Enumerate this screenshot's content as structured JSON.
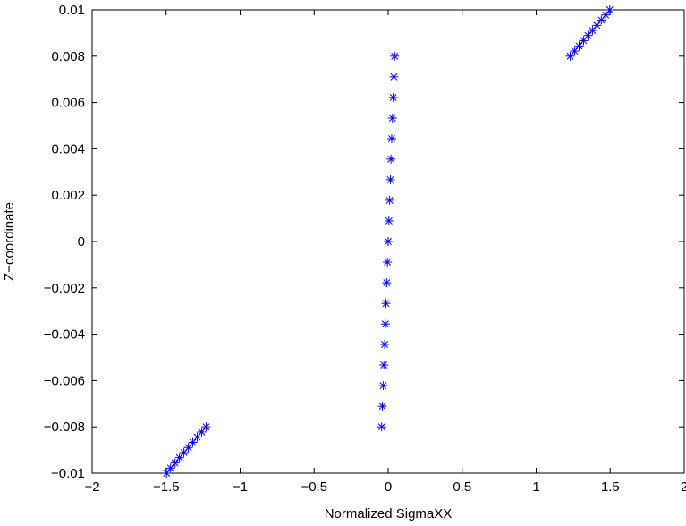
{
  "chart_data": {
    "type": "scatter",
    "title": "",
    "xlabel": "Normalized SigmaXX",
    "ylabel": "Z−coordinate",
    "xlim": [
      -2,
      2
    ],
    "ylim": [
      -0.01,
      0.01
    ],
    "xticks": [
      -2,
      -1.5,
      -1,
      -0.5,
      0,
      0.5,
      1,
      1.5,
      2
    ],
    "xtick_labels": [
      "−2",
      "−1.5",
      "−1",
      "−0.5",
      "0",
      "0.5",
      "1",
      "1.5",
      "2"
    ],
    "yticks": [
      -0.01,
      -0.008,
      -0.006,
      -0.004,
      -0.002,
      0,
      0.002,
      0.004,
      0.006,
      0.008,
      0.01
    ],
    "ytick_labels": [
      "−0.01",
      "−0.008",
      "−0.006",
      "−0.004",
      "−0.002",
      "0",
      "0.002",
      "0.004",
      "0.006",
      "0.008",
      "0.01"
    ],
    "grid": false,
    "legend": "none",
    "marker": "asterisk",
    "marker_color": "#0000ff",
    "series": [
      {
        "points": [
          [
            -1.497,
            -0.01
          ],
          [
            -1.47,
            -0.00978
          ],
          [
            -1.44,
            -0.00956
          ],
          [
            -1.41,
            -0.00933
          ],
          [
            -1.38,
            -0.00911
          ],
          [
            -1.35,
            -0.00889
          ],
          [
            -1.32,
            -0.00867
          ],
          [
            -1.29,
            -0.00844
          ],
          [
            -1.26,
            -0.00822
          ],
          [
            -1.23,
            -0.008
          ],
          [
            -0.044,
            -0.008
          ],
          [
            -0.039,
            -0.00711
          ],
          [
            -0.034,
            -0.00622
          ],
          [
            -0.029,
            -0.00533
          ],
          [
            -0.024,
            -0.00444
          ],
          [
            -0.019,
            -0.00356
          ],
          [
            -0.015,
            -0.00267
          ],
          [
            -0.01,
            -0.00178
          ],
          [
            -0.005,
            -0.00089
          ],
          [
            0.0,
            0.0
          ],
          [
            0.005,
            0.00089
          ],
          [
            0.01,
            0.00178
          ],
          [
            0.015,
            0.00267
          ],
          [
            0.019,
            0.00356
          ],
          [
            0.024,
            0.00444
          ],
          [
            0.029,
            0.00533
          ],
          [
            0.034,
            0.00622
          ],
          [
            0.039,
            0.00711
          ],
          [
            0.044,
            0.008
          ],
          [
            1.23,
            0.008
          ],
          [
            1.26,
            0.00822
          ],
          [
            1.29,
            0.00844
          ],
          [
            1.32,
            0.00867
          ],
          [
            1.35,
            0.00889
          ],
          [
            1.38,
            0.00911
          ],
          [
            1.41,
            0.00933
          ],
          [
            1.44,
            0.00956
          ],
          [
            1.47,
            0.00978
          ],
          [
            1.497,
            0.01
          ]
        ]
      }
    ]
  }
}
